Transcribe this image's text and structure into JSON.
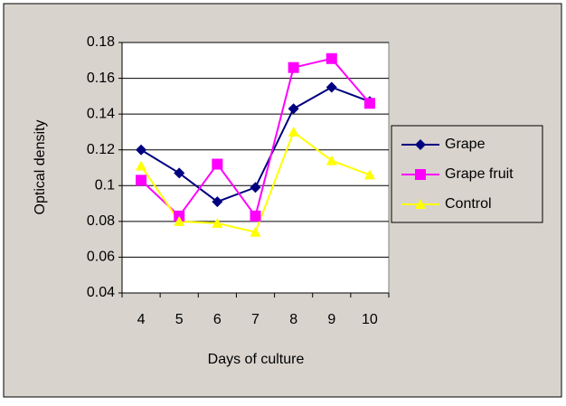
{
  "chart_data": {
    "type": "line",
    "xlabel": "Days of culture",
    "ylabel": "Optical density",
    "categories": [
      "4",
      "5",
      "6",
      "7",
      "8",
      "9",
      "10"
    ],
    "series": [
      {
        "name": "Grape",
        "color": "#000080",
        "marker": "diamond",
        "values": [
          0.12,
          0.107,
          0.091,
          0.099,
          0.143,
          0.155,
          0.147
        ]
      },
      {
        "name": "Grape fruit",
        "color": "#ff00ff",
        "marker": "square",
        "values": [
          0.103,
          0.083,
          0.112,
          0.083,
          0.166,
          0.171,
          0.146
        ]
      },
      {
        "name": "Control",
        "color": "#ffff00",
        "marker": "triangle",
        "values": [
          0.111,
          0.08,
          0.079,
          0.074,
          0.13,
          0.114,
          0.106
        ]
      }
    ],
    "ylim": [
      0.04,
      0.18
    ],
    "yticks": [
      0.04,
      0.06,
      0.08,
      0.1,
      0.12,
      0.14,
      0.16,
      0.18
    ],
    "grid": true,
    "legend": "right"
  }
}
